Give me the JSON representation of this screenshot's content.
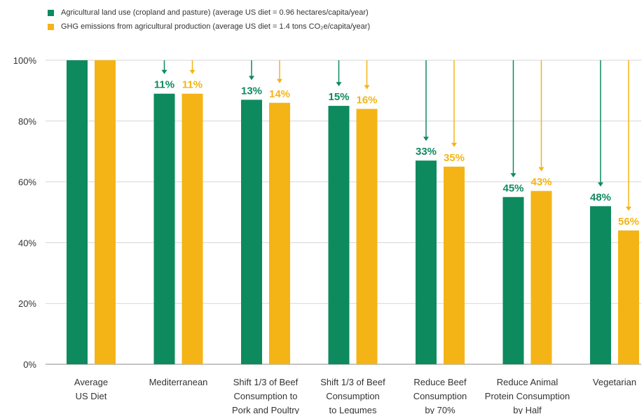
{
  "chart_data": {
    "type": "bar",
    "title": "",
    "xlabel": "",
    "ylabel": "",
    "ylim": [
      0,
      100
    ],
    "yticks": [
      0,
      20,
      40,
      60,
      80,
      100
    ],
    "ytick_labels": [
      "0%",
      "20%",
      "40%",
      "60%",
      "80%",
      "100%"
    ],
    "grid": true,
    "legend_position": "top-left",
    "categories": [
      [
        "Average",
        "US Diet"
      ],
      [
        "Mediterranean"
      ],
      [
        "Shift 1/3 of Beef",
        "Consumption to",
        "Pork and Poultry"
      ],
      [
        "Shift 1/3 of Beef",
        "Consumption",
        "to Legumes"
      ],
      [
        "Reduce Beef",
        "Consumption",
        "by 70%"
      ],
      [
        "Reduce Animal",
        "Protein Consumption",
        "by Half"
      ],
      [
        "Vegetarian"
      ]
    ],
    "series": [
      {
        "name": "Agricultural land use (cropland and pasture) (average US diet = 0.96 hectares/capita/year)",
        "color": "#0e8a5f",
        "values": [
          100,
          89,
          87,
          85,
          67,
          55,
          52
        ],
        "labels": [
          "",
          "11%",
          "13%",
          "15%",
          "33%",
          "45%",
          "48%"
        ]
      },
      {
        "name": "GHG emissions from agricultural production (average US diet = 1.4 tons CO₂e/capita/year)",
        "color": "#f5b416",
        "values": [
          100,
          89,
          86,
          84,
          65,
          57,
          44
        ],
        "labels": [
          "",
          "11%",
          "14%",
          "16%",
          "35%",
          "43%",
          "56%"
        ]
      }
    ]
  }
}
